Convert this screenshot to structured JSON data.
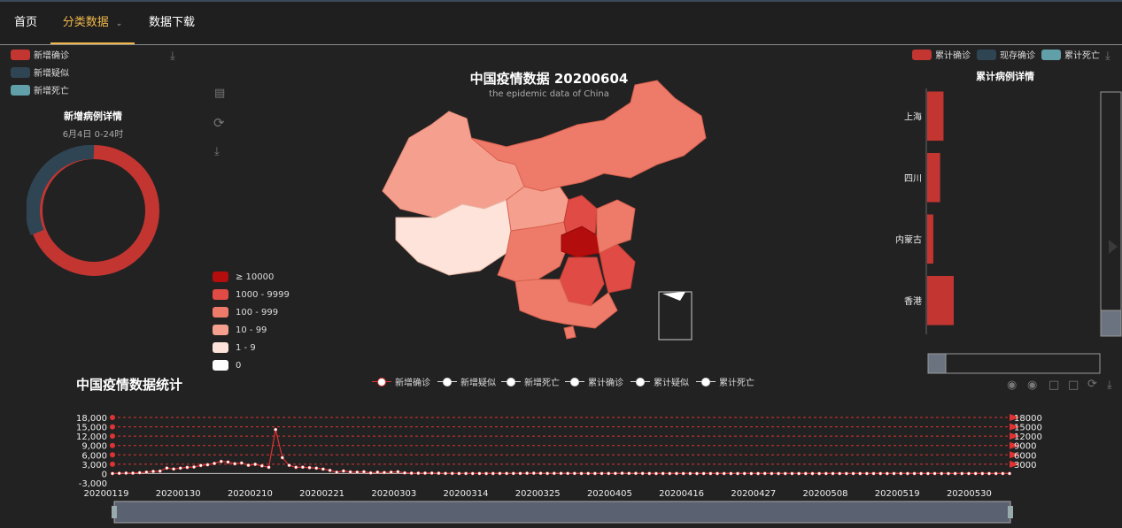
{
  "nav": {
    "home": "首页",
    "category": "分类数据",
    "download": "数据下载"
  },
  "left_legend": [
    {
      "label": "新增确诊",
      "color": "#c23531"
    },
    {
      "label": "新增疑似",
      "color": "#2f4554"
    },
    {
      "label": "新增死亡",
      "color": "#61a0a8"
    }
  ],
  "donut": {
    "title": "新增病例详情",
    "subtitle": "6月4日 0-24时",
    "color_main": "#c23531",
    "color_second": "#2f4554"
  },
  "map": {
    "title": "中国疫情数据 20200604",
    "subtitle": "the epidemic data of China",
    "levels": [
      {
        "label": "≥ 10000",
        "color": "#b30d0d"
      },
      {
        "label": "1000 - 9999",
        "color": "#e04c45"
      },
      {
        "label": "100 - 999",
        "color": "#ee7b6a"
      },
      {
        "label": "10 - 99",
        "color": "#f5a08e"
      },
      {
        "label": "1 - 9",
        "color": "#fde3d9"
      },
      {
        "label": "0",
        "color": "#ffffff"
      }
    ]
  },
  "right_legend": [
    {
      "label": "累计确诊",
      "color": "#c23531"
    },
    {
      "label": "现存确诊",
      "color": "#2f4554"
    },
    {
      "label": "累计死亡",
      "color": "#61a0a8"
    }
  ],
  "bar_panel": {
    "title": "累计病例详情",
    "chart_data": {
      "type": "bar",
      "categories": [
        "上海",
        "四川",
        "内蒙古",
        "香港"
      ],
      "values": [
        2.4,
        1.9,
        0.9,
        3.9
      ]
    }
  },
  "timeline": {
    "title": "中国疫情数据统计",
    "series_legend": [
      "新增确诊",
      "新增疑似",
      "新增死亡",
      "累计确诊",
      "累计疑似",
      "累计死亡"
    ],
    "chart_data": {
      "type": "line",
      "x_labels": [
        "20200119",
        "20200130",
        "20200210",
        "20200221",
        "20200303",
        "20200314",
        "20200325",
        "20200405",
        "20200416",
        "20200427",
        "20200508",
        "20200519",
        "20200530"
      ],
      "y_left": [
        "18,000",
        "15,000",
        "12,000",
        "9,000",
        "6,000",
        "3,000",
        "0",
        "-3,000"
      ],
      "y_right": [
        "18000",
        "15000",
        "12000",
        "9000",
        "6000",
        "3000"
      ],
      "ylim": [
        -3000,
        18000
      ],
      "series": [
        {
          "name": "新增确诊",
          "values": [
            17,
            77,
            149,
            131,
            259,
            444,
            688,
            769,
            1771,
            1459,
            1737,
            1982,
            2102,
            2590,
            2829,
            3235,
            3887,
            3694,
            3143,
            3385,
            2652,
            2973,
            2467,
            2015,
            14108,
            5090,
            2641,
            2008,
            2048,
            1886,
            1749,
            1432,
            1018,
            406,
            822,
            508,
            427,
            573,
            202,
            433,
            327,
            427,
            573,
            202,
            125,
            119,
            139,
            143,
            99,
            44,
            40,
            19,
            24,
            15,
            20,
            11,
            21,
            34,
            39,
            41,
            46,
            99,
            108,
            78,
            47,
            67,
            55,
            54,
            45,
            31,
            35,
            32,
            30,
            36,
            48,
            99,
            54,
            63,
            46,
            27,
            16,
            26,
            17,
            27,
            12,
            6,
            11,
            10,
            7,
            12,
            4,
            2,
            3,
            4,
            7,
            8,
            22,
            4,
            2,
            1,
            3,
            5,
            2,
            2,
            1,
            3,
            11,
            3,
            2,
            4,
            5,
            3,
            0,
            7,
            3,
            6,
            8,
            4,
            5,
            1,
            3,
            3,
            2,
            3,
            5,
            7,
            3,
            4,
            2,
            6,
            4,
            3,
            4
          ]
        }
      ]
    }
  }
}
